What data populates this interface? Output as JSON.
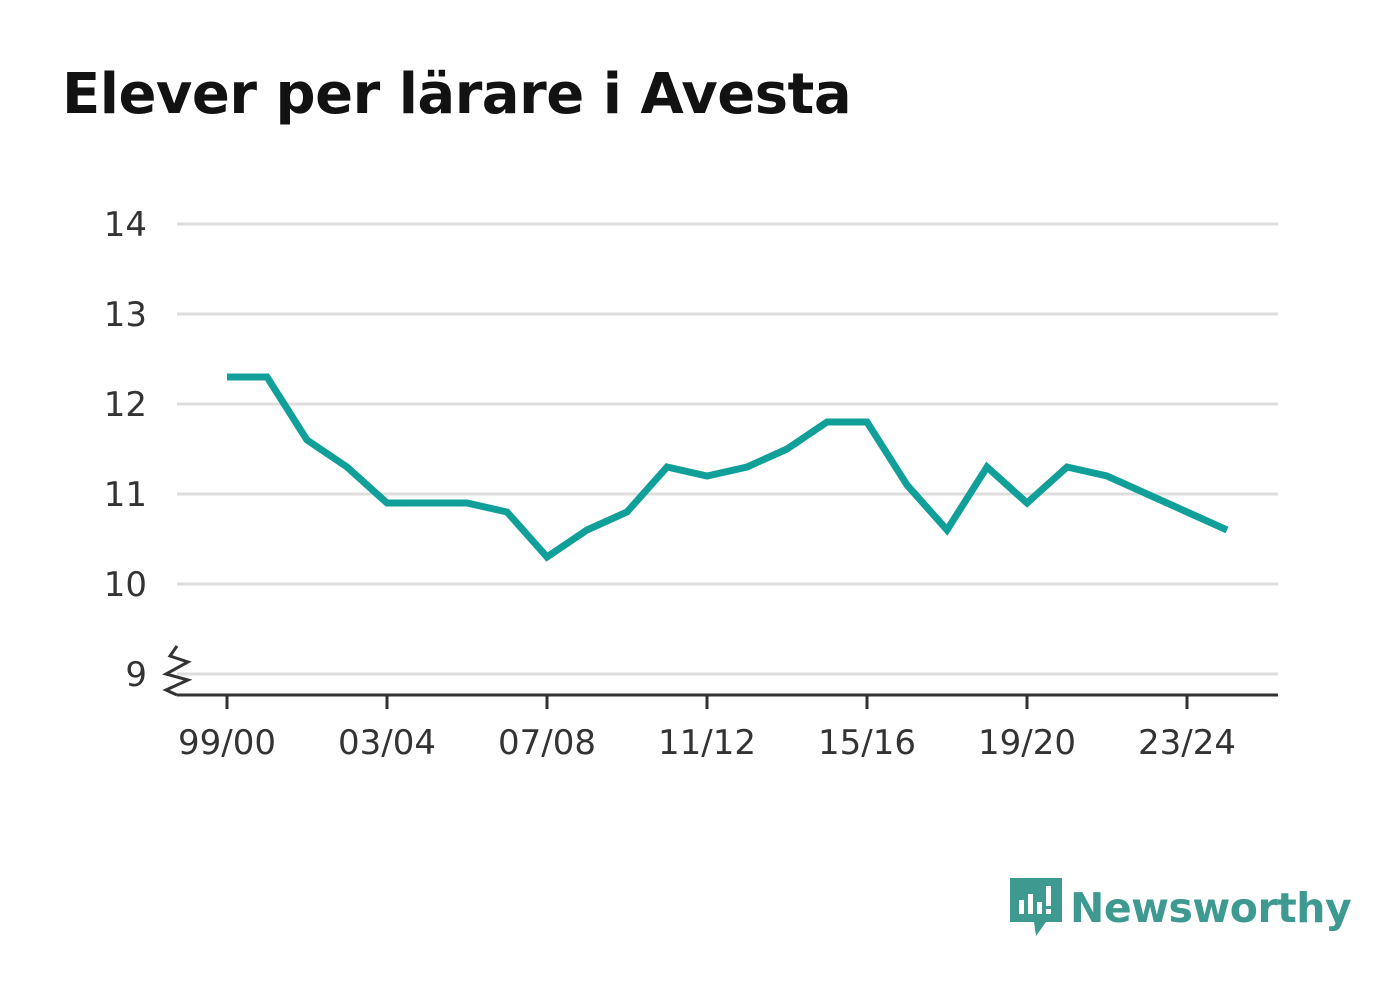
{
  "chart_data": {
    "type": "line",
    "title": "Elever per lärare i Avesta",
    "xlabel": "",
    "ylabel": "",
    "x": [
      "99/00",
      "00/01",
      "01/02",
      "02/03",
      "03/04",
      "04/05",
      "05/06",
      "06/07",
      "07/08",
      "08/09",
      "09/10",
      "10/11",
      "11/12",
      "12/13",
      "13/14",
      "14/15",
      "15/16",
      "16/17",
      "17/18",
      "18/19",
      "19/20",
      "20/21",
      "21/22",
      "22/23",
      "23/24",
      "24/25"
    ],
    "series": [
      {
        "values": [
          12.3,
          12.3,
          11.6,
          11.3,
          10.9,
          10.9,
          10.9,
          10.8,
          10.3,
          10.6,
          10.8,
          11.3,
          11.2,
          11.3,
          11.5,
          11.8,
          11.8,
          11.1,
          10.6,
          11.3,
          10.9,
          11.3,
          11.2,
          11.0,
          10.8,
          10.6
        ],
        "color": "#11a099"
      }
    ],
    "x_tick_labels": [
      "99/00",
      "03/04",
      "07/08",
      "11/12",
      "15/16",
      "19/20",
      "23/24"
    ],
    "y_ticks": [
      9,
      10,
      11,
      12,
      13,
      14
    ],
    "ylim": [
      9,
      14
    ],
    "y_axis_break": true,
    "grid": true,
    "legend": "none"
  },
  "branding": {
    "text": "Newsworthy",
    "icon": "newsworthy-logo-icon",
    "color": "#3e9a91"
  },
  "colors": {
    "grid": "#dddddd",
    "axis": "#333333",
    "text": "#333333"
  }
}
